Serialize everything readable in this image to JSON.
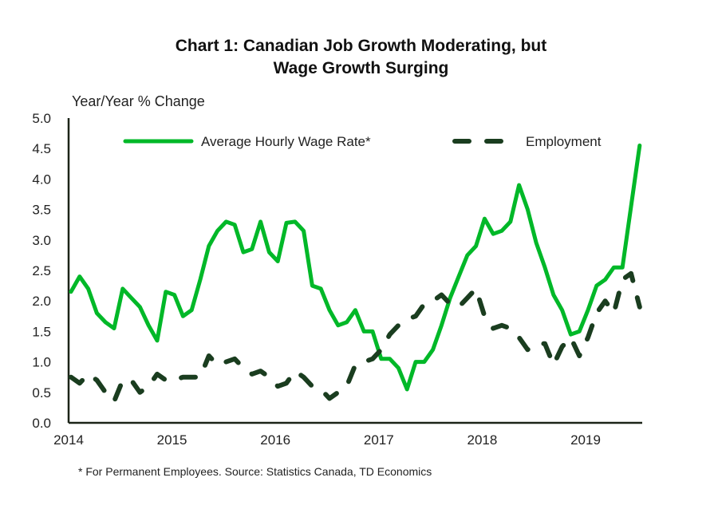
{
  "chart_data": {
    "type": "line",
    "title_line1": "Chart 1: Canadian Job Growth Moderating, but",
    "title_line2": "Wage Growth Surging",
    "ylabel": "Year/Year % Change",
    "xlabel": "",
    "ylim": [
      0,
      5
    ],
    "yticks": [
      "0.0",
      "0.5",
      "1.0",
      "1.5",
      "2.0",
      "2.5",
      "3.0",
      "3.5",
      "4.0",
      "4.5",
      "5.0"
    ],
    "xticks": [
      "2014",
      "2015",
      "2016",
      "2017",
      "2018",
      "2019"
    ],
    "x_start": "2014-01",
    "x_frequency": "monthly",
    "grid": false,
    "legend_position": "top",
    "colors": {
      "wage": "#00b828",
      "employment": "#1a3d1f",
      "axis": "#1c2418"
    },
    "series": [
      {
        "name": "Average Hourly Wage Rate*",
        "style": "solid",
        "values": [
          2.15,
          2.4,
          2.2,
          1.8,
          1.65,
          1.55,
          2.2,
          2.05,
          1.9,
          1.6,
          1.35,
          2.15,
          2.1,
          1.75,
          1.85,
          2.35,
          2.9,
          3.15,
          3.3,
          3.25,
          2.8,
          2.85,
          3.3,
          2.8,
          2.65,
          3.28,
          3.3,
          3.15,
          2.25,
          2.2,
          1.85,
          1.6,
          1.65,
          1.85,
          1.5,
          1.5,
          1.05,
          1.05,
          0.9,
          0.55,
          1.0,
          1.0,
          1.2,
          1.6,
          2.05,
          2.4,
          2.75,
          2.9,
          3.35,
          3.1,
          3.15,
          3.3,
          3.9,
          3.5,
          2.95,
          2.55,
          2.1,
          1.85,
          1.45,
          1.5,
          1.85,
          2.25,
          2.35,
          2.55,
          2.55,
          3.55,
          4.55
        ]
      },
      {
        "name": "Employment",
        "style": "dashed",
        "values": [
          0.75,
          0.65,
          0.8,
          0.7,
          0.5,
          0.35,
          0.7,
          0.7,
          0.5,
          0.6,
          0.8,
          0.7,
          0.7,
          0.75,
          0.75,
          0.75,
          1.1,
          0.95,
          1.0,
          1.05,
          0.9,
          0.8,
          0.85,
          0.75,
          0.6,
          0.65,
          0.85,
          0.75,
          0.6,
          0.55,
          0.4,
          0.5,
          0.6,
          0.95,
          1.0,
          1.05,
          1.2,
          1.45,
          1.6,
          1.7,
          1.75,
          1.95,
          2.0,
          2.1,
          1.95,
          1.9,
          2.05,
          2.2,
          1.75,
          1.55,
          1.6,
          1.55,
          1.4,
          1.2,
          1.3,
          1.3,
          0.95,
          1.25,
          1.4,
          1.1,
          1.4,
          1.8,
          2.0,
          1.8,
          2.35,
          2.45,
          1.9
        ]
      }
    ],
    "footnote": "* For Permanent  Employees.  Source: Statistics Canada,  TD Economics"
  }
}
